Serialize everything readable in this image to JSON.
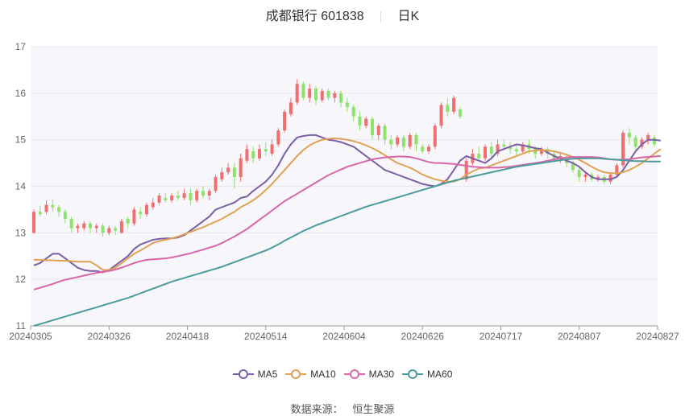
{
  "header": {
    "stock_title": "成都银行 601838",
    "period": "日K"
  },
  "footer": {
    "source_label": "数据来源：",
    "source_name": "恒生聚源"
  },
  "colors": {
    "up": "#f06e6e",
    "down": "#8ee26a",
    "ma5": "#7b5ea7",
    "ma10": "#e1a153",
    "ma30": "#d866a8",
    "ma60": "#4b9b9b",
    "grid": "#e6e6ef",
    "plot_bg": "#f6f6fb"
  },
  "chart_data": {
    "type": "candlestick",
    "title": "成都银行 601838",
    "period": "日K",
    "ylim": [
      11,
      17
    ],
    "y_ticks": [
      "11",
      "12",
      "13",
      "14",
      "15",
      "16",
      "17"
    ],
    "x_ticks": [
      "20240305",
      "20240326",
      "20240418",
      "20240514",
      "20240604",
      "20240626",
      "20240717",
      "20240807",
      "20240827"
    ],
    "legend": [
      {
        "name": "MA5",
        "color": "#7b5ea7"
      },
      {
        "name": "MA10",
        "color": "#e1a153"
      },
      {
        "name": "MA30",
        "color": "#d866a8"
      },
      {
        "name": "MA60",
        "color": "#4b9b9b"
      }
    ],
    "candles": [
      [
        13.0,
        13.45,
        13.5,
        12.98
      ],
      [
        13.45,
        13.4,
        13.58,
        13.35
      ],
      [
        13.45,
        13.6,
        13.7,
        13.4
      ],
      [
        13.6,
        13.55,
        13.72,
        13.45
      ],
      [
        13.55,
        13.45,
        13.6,
        13.35
      ],
      [
        13.45,
        13.3,
        13.5,
        13.2
      ],
      [
        13.3,
        13.1,
        13.35,
        13.0
      ],
      [
        13.1,
        13.15,
        13.2,
        13.0
      ],
      [
        13.1,
        13.2,
        13.25,
        13.05
      ],
      [
        13.2,
        13.1,
        13.25,
        13.0
      ],
      [
        13.1,
        13.15,
        13.2,
        13.0
      ],
      [
        13.15,
        13.0,
        13.2,
        12.92
      ],
      [
        13.0,
        13.1,
        13.15,
        12.95
      ],
      [
        13.1,
        13.05,
        13.15,
        12.95
      ],
      [
        13.0,
        13.25,
        13.3,
        12.98
      ],
      [
        13.3,
        13.2,
        13.35,
        13.1
      ],
      [
        13.2,
        13.5,
        13.55,
        13.15
      ],
      [
        13.45,
        13.4,
        13.55,
        13.3
      ],
      [
        13.4,
        13.6,
        13.65,
        13.35
      ],
      [
        13.55,
        13.65,
        13.75,
        13.5
      ],
      [
        13.65,
        13.8,
        13.85,
        13.6
      ],
      [
        13.75,
        13.7,
        13.85,
        13.65
      ],
      [
        13.7,
        13.8,
        13.85,
        13.65
      ],
      [
        13.8,
        13.75,
        13.9,
        13.7
      ],
      [
        13.75,
        13.85,
        13.95,
        13.7
      ],
      [
        13.85,
        13.7,
        13.95,
        13.6
      ],
      [
        13.7,
        13.9,
        13.95,
        13.65
      ],
      [
        13.9,
        13.8,
        14.0,
        13.75
      ],
      [
        13.8,
        13.9,
        13.95,
        13.7
      ],
      [
        13.9,
        14.2,
        14.25,
        13.85
      ],
      [
        14.15,
        14.3,
        14.4,
        14.1
      ],
      [
        14.3,
        14.4,
        14.5,
        14.25
      ],
      [
        14.4,
        14.2,
        14.5,
        13.95
      ],
      [
        14.2,
        14.6,
        14.7,
        14.1
      ],
      [
        14.55,
        14.8,
        14.9,
        14.5
      ],
      [
        14.75,
        14.6,
        14.85,
        14.5
      ],
      [
        14.6,
        14.8,
        14.9,
        14.55
      ],
      [
        14.8,
        14.75,
        14.95,
        14.65
      ],
      [
        14.7,
        14.9,
        15.0,
        14.65
      ],
      [
        14.9,
        15.2,
        15.25,
        14.85
      ],
      [
        15.2,
        15.6,
        15.65,
        15.15
      ],
      [
        15.55,
        15.8,
        15.9,
        15.5
      ],
      [
        15.8,
        16.2,
        16.3,
        15.75
      ],
      [
        16.2,
        15.9,
        16.25,
        15.85
      ],
      [
        15.9,
        16.1,
        16.2,
        15.8
      ],
      [
        16.1,
        15.85,
        16.15,
        15.75
      ],
      [
        15.85,
        16.05,
        16.1,
        15.8
      ],
      [
        16.05,
        15.9,
        16.1,
        15.85
      ],
      [
        15.9,
        16.0,
        16.05,
        15.8
      ],
      [
        16.0,
        15.8,
        16.05,
        15.7
      ],
      [
        15.8,
        15.7,
        15.9,
        15.6
      ],
      [
        15.7,
        15.5,
        15.75,
        15.4
      ],
      [
        15.5,
        15.3,
        15.6,
        15.2
      ],
      [
        15.3,
        15.45,
        15.5,
        15.25
      ],
      [
        15.45,
        15.1,
        15.5,
        15.0
      ],
      [
        15.1,
        15.3,
        15.35,
        15.0
      ],
      [
        15.3,
        15.0,
        15.35,
        14.9
      ],
      [
        15.0,
        14.9,
        15.1,
        14.8
      ],
      [
        14.9,
        15.05,
        15.1,
        14.85
      ],
      [
        15.05,
        14.85,
        15.1,
        14.75
      ],
      [
        14.85,
        15.1,
        15.15,
        14.8
      ],
      [
        15.1,
        14.9,
        15.15,
        14.75
      ],
      [
        14.85,
        14.75,
        14.9,
        14.7
      ],
      [
        14.75,
        14.85,
        14.9,
        14.7
      ],
      [
        14.85,
        15.3,
        15.35,
        14.8
      ],
      [
        15.3,
        15.75,
        15.8,
        15.25
      ],
      [
        15.75,
        15.6,
        15.9,
        15.5
      ],
      [
        15.6,
        15.9,
        15.95,
        15.55
      ],
      [
        15.65,
        15.5,
        15.7,
        15.45
      ],
      [
        14.15,
        14.55,
        14.6,
        14.1
      ],
      [
        14.5,
        14.7,
        14.8,
        14.45
      ],
      [
        14.7,
        14.6,
        14.85,
        14.55
      ],
      [
        14.6,
        14.85,
        14.9,
        14.55
      ],
      [
        14.85,
        14.7,
        14.95,
        14.6
      ],
      [
        14.7,
        14.9,
        15.0,
        14.65
      ],
      [
        14.9,
        14.85,
        15.0,
        14.8
      ],
      [
        14.85,
        14.8,
        14.95,
        14.7
      ],
      [
        14.8,
        14.75,
        14.9,
        14.65
      ],
      [
        14.75,
        14.9,
        14.95,
        14.7
      ],
      [
        14.9,
        14.8,
        15.0,
        14.7
      ],
      [
        14.8,
        14.7,
        14.85,
        14.6
      ],
      [
        14.7,
        14.8,
        14.85,
        14.65
      ],
      [
        14.8,
        14.7,
        14.85,
        14.6
      ],
      [
        14.7,
        14.6,
        14.75,
        14.55
      ],
      [
        14.6,
        14.65,
        14.7,
        14.5
      ],
      [
        14.6,
        14.5,
        14.7,
        14.4
      ],
      [
        14.5,
        14.35,
        14.55,
        14.3
      ],
      [
        14.35,
        14.2,
        14.4,
        14.1
      ],
      [
        14.2,
        14.25,
        14.3,
        14.1
      ],
      [
        14.25,
        14.15,
        14.3,
        14.1
      ],
      [
        14.15,
        14.2,
        14.25,
        14.1
      ],
      [
        14.2,
        14.1,
        14.25,
        14.05
      ],
      [
        14.1,
        14.25,
        14.3,
        14.05
      ],
      [
        14.25,
        14.45,
        14.5,
        14.2
      ],
      [
        14.45,
        15.15,
        15.2,
        14.4
      ],
      [
        15.15,
        15.05,
        15.25,
        14.9
      ],
      [
        15.05,
        14.85,
        15.1,
        14.75
      ],
      [
        14.85,
        15.0,
        15.05,
        14.8
      ],
      [
        15.0,
        15.1,
        15.15,
        14.9
      ],
      [
        15.05,
        14.9,
        15.1,
        14.85
      ]
    ],
    "series": [
      {
        "name": "MA5",
        "values": [
          12.3,
          12.35,
          12.45,
          12.55,
          12.55,
          12.45,
          12.35,
          12.25,
          12.2,
          12.18,
          12.18,
          12.15,
          12.2,
          12.3,
          12.4,
          12.5,
          12.65,
          12.75,
          12.8,
          12.85,
          12.87,
          12.88,
          12.88,
          12.9,
          12.95,
          13.05,
          13.15,
          13.25,
          13.35,
          13.5,
          13.55,
          13.6,
          13.65,
          13.75,
          13.78,
          13.9,
          14.0,
          14.1,
          14.25,
          14.45,
          14.7,
          14.9,
          15.05,
          15.08,
          15.1,
          15.1,
          15.05,
          15.0,
          14.98,
          14.95,
          14.9,
          14.85,
          14.75,
          14.65,
          14.55,
          14.45,
          14.35,
          14.3,
          14.25,
          14.2,
          14.15,
          14.1,
          14.05,
          14.02,
          14.0,
          14.05,
          14.15,
          14.35,
          14.55,
          14.65,
          14.6,
          14.55,
          14.5,
          14.6,
          14.75,
          14.8,
          14.85,
          14.9,
          14.88,
          14.85,
          14.82,
          14.8,
          14.72,
          14.65,
          14.6,
          14.55,
          14.5,
          14.42,
          14.3,
          14.2,
          14.15,
          14.15,
          14.15,
          14.2,
          14.35,
          14.55,
          14.75,
          14.9,
          15.0,
          15.0,
          14.98
        ]
      },
      {
        "name": "MA10",
        "values": [
          12.42,
          12.42,
          12.41,
          12.41,
          12.4,
          12.4,
          12.39,
          12.38,
          12.38,
          12.38,
          12.3,
          12.2,
          12.2,
          12.25,
          12.35,
          12.45,
          12.55,
          12.62,
          12.7,
          12.78,
          12.82,
          12.85,
          12.88,
          12.92,
          12.97,
          13.02,
          13.07,
          13.12,
          13.18,
          13.24,
          13.3,
          13.38,
          13.45,
          13.55,
          13.62,
          13.7,
          13.8,
          13.92,
          14.05,
          14.2,
          14.35,
          14.5,
          14.65,
          14.78,
          14.88,
          14.95,
          15.0,
          15.02,
          15.03,
          15.02,
          15.0,
          14.97,
          14.93,
          14.88,
          14.82,
          14.75,
          14.67,
          14.58,
          14.5,
          14.45,
          14.4,
          14.33,
          14.25,
          14.2,
          14.15,
          14.12,
          14.1,
          14.1,
          14.15,
          14.25,
          14.32,
          14.38,
          14.4,
          14.45,
          14.5,
          14.55,
          14.6,
          14.65,
          14.7,
          14.75,
          14.77,
          14.78,
          14.77,
          14.75,
          14.72,
          14.68,
          14.63,
          14.57,
          14.5,
          14.42,
          14.35,
          14.3,
          14.28,
          14.28,
          14.3,
          14.35,
          14.42,
          14.5,
          14.6,
          14.7,
          14.8
        ]
      },
      {
        "name": "MA30",
        "values": [
          11.78,
          11.82,
          11.86,
          11.9,
          11.95,
          11.99,
          12.02,
          12.05,
          12.08,
          12.11,
          12.14,
          12.16,
          12.18,
          12.21,
          12.25,
          12.3,
          12.35,
          12.39,
          12.42,
          12.43,
          12.44,
          12.45,
          12.47,
          12.5,
          12.53,
          12.56,
          12.6,
          12.64,
          12.68,
          12.72,
          12.78,
          12.85,
          12.92,
          13.0,
          13.08,
          13.18,
          13.28,
          13.38,
          13.48,
          13.58,
          13.68,
          13.76,
          13.84,
          13.92,
          14.0,
          14.08,
          14.16,
          14.24,
          14.3,
          14.36,
          14.42,
          14.46,
          14.5,
          14.54,
          14.58,
          14.6,
          14.62,
          14.63,
          14.64,
          14.64,
          14.63,
          14.6,
          14.56,
          14.52,
          14.5,
          14.5,
          14.49,
          14.48,
          14.46,
          14.44,
          14.42,
          14.41,
          14.4,
          14.4,
          14.4,
          14.41,
          14.42,
          14.44,
          14.46,
          14.48,
          14.5,
          14.52,
          14.55,
          14.58,
          14.6,
          14.62,
          14.63,
          14.63,
          14.63,
          14.63,
          14.62,
          14.6,
          14.58,
          14.57,
          14.57,
          14.58,
          14.6,
          14.62,
          14.63,
          14.64,
          14.65
        ]
      },
      {
        "name": "MA60",
        "values": [
          11.0,
          11.04,
          11.08,
          11.12,
          11.16,
          11.2,
          11.24,
          11.28,
          11.32,
          11.36,
          11.4,
          11.44,
          11.48,
          11.52,
          11.56,
          11.6,
          11.65,
          11.7,
          11.75,
          11.8,
          11.85,
          11.9,
          11.95,
          11.99,
          12.03,
          12.07,
          12.11,
          12.15,
          12.19,
          12.23,
          12.27,
          12.32,
          12.37,
          12.42,
          12.47,
          12.52,
          12.57,
          12.62,
          12.68,
          12.75,
          12.83,
          12.9,
          12.97,
          13.04,
          13.1,
          13.16,
          13.21,
          13.26,
          13.31,
          13.36,
          13.41,
          13.46,
          13.51,
          13.56,
          13.6,
          13.64,
          13.68,
          13.72,
          13.76,
          13.8,
          13.84,
          13.88,
          13.92,
          13.96,
          14.0,
          14.04,
          14.08,
          14.12,
          14.15,
          14.18,
          14.21,
          14.24,
          14.27,
          14.3,
          14.33,
          14.36,
          14.39,
          14.42,
          14.44,
          14.46,
          14.48,
          14.5,
          14.52,
          14.54,
          14.56,
          14.58,
          14.59,
          14.6,
          14.6,
          14.6,
          14.6,
          14.59,
          14.58,
          14.57,
          14.56,
          14.55,
          14.54,
          14.54,
          14.53,
          14.53,
          14.53
        ]
      }
    ]
  }
}
